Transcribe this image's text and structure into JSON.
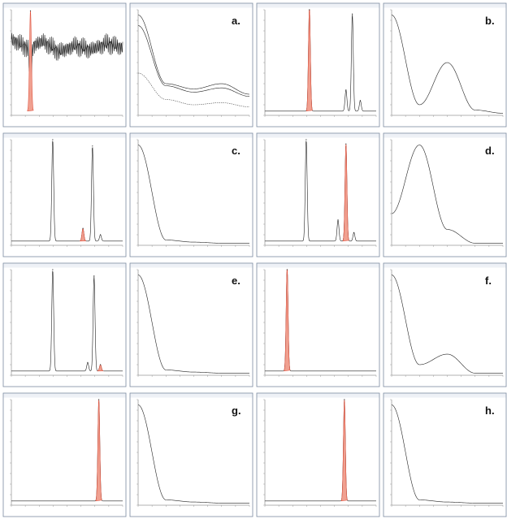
{
  "figure": {
    "rows": [
      {
        "label": "a."
      },
      {
        "label": "b."
      },
      {
        "label": "c."
      },
      {
        "label": "d."
      },
      {
        "label": "e."
      },
      {
        "label": "f."
      },
      {
        "label": "g."
      },
      {
        "label": "h."
      }
    ]
  },
  "colors": {
    "frame": "#7a8aa0",
    "trace": "#222222",
    "highlight": "#e0533f",
    "highlight_fill": "#f0a090",
    "titlebar": "#eef1f6"
  },
  "chart_data": [
    {
      "type": "line",
      "row": "a",
      "panel": "chromatogram",
      "x": [
        0,
        1,
        2,
        3,
        4,
        5,
        6,
        7
      ],
      "series": [
        {
          "values": [
            0.72,
            0.64,
            0.7,
            0.6,
            0.66,
            0.62,
            0.68,
            0.64
          ]
        }
      ],
      "peaks": [
        {
          "x": 1.2,
          "height": 0.95,
          "highlight": true
        }
      ]
    },
    {
      "type": "line",
      "row": "a",
      "panel": "spectrum",
      "x": [
        200,
        250,
        300,
        350,
        400
      ],
      "series": [
        {
          "values": [
            0.95,
            0.3,
            0.25,
            0.3,
            0.2
          ]
        },
        {
          "values": [
            0.85,
            0.28,
            0.22,
            0.26,
            0.18
          ]
        },
        {
          "values": [
            0.4,
            0.15,
            0.1,
            0.12,
            0.08
          ]
        }
      ]
    },
    {
      "type": "line",
      "row": "b",
      "panel": "chromatogram",
      "x": [
        0,
        1,
        2,
        3,
        4,
        5,
        6,
        7
      ],
      "peaks": [
        {
          "x": 2.8,
          "height": 0.98,
          "highlight": true
        },
        {
          "x": 5.1,
          "height": 0.2
        },
        {
          "x": 5.5,
          "height": 0.92
        },
        {
          "x": 6.0,
          "height": 0.1
        }
      ]
    },
    {
      "type": "line",
      "row": "b",
      "panel": "spectrum",
      "x": [
        200,
        250,
        300,
        350,
        400
      ],
      "series": [
        {
          "values": [
            0.95,
            0.1,
            0.5,
            0.05,
            0.02
          ]
        }
      ]
    },
    {
      "type": "line",
      "row": "c",
      "panel": "chromatogram",
      "x": [
        0,
        1,
        2,
        3,
        4,
        5,
        6,
        7
      ],
      "peaks": [
        {
          "x": 2.6,
          "height": 0.96
        },
        {
          "x": 4.5,
          "height": 0.12,
          "highlight": true
        },
        {
          "x": 5.1,
          "height": 0.9
        },
        {
          "x": 5.6,
          "height": 0.06
        }
      ]
    },
    {
      "type": "line",
      "row": "c",
      "panel": "spectrum",
      "x": [
        200,
        250,
        300,
        350,
        400
      ],
      "series": [
        {
          "values": [
            0.95,
            0.05,
            0.03,
            0.02,
            0.02
          ]
        }
      ]
    },
    {
      "type": "line",
      "row": "d",
      "panel": "chromatogram",
      "x": [
        0,
        1,
        2,
        3,
        4,
        5,
        6,
        7
      ],
      "peaks": [
        {
          "x": 2.6,
          "height": 0.96
        },
        {
          "x": 4.6,
          "height": 0.2
        },
        {
          "x": 5.1,
          "height": 0.92,
          "highlight": true
        },
        {
          "x": 5.6,
          "height": 0.08
        }
      ]
    },
    {
      "type": "line",
      "row": "d",
      "panel": "spectrum",
      "x": [
        200,
        250,
        300,
        350,
        400
      ],
      "series": [
        {
          "values": [
            0.3,
            0.95,
            0.15,
            0.02,
            0.02
          ]
        }
      ]
    },
    {
      "type": "line",
      "row": "e",
      "panel": "chromatogram",
      "x": [
        0,
        1,
        2,
        3,
        4,
        5,
        6,
        7
      ],
      "peaks": [
        {
          "x": 2.6,
          "height": 0.96
        },
        {
          "x": 4.8,
          "height": 0.08
        },
        {
          "x": 5.2,
          "height": 0.9
        },
        {
          "x": 5.6,
          "height": 0.06,
          "highlight": true
        }
      ]
    },
    {
      "type": "line",
      "row": "e",
      "panel": "spectrum",
      "x": [
        200,
        250,
        300,
        350,
        400
      ],
      "series": [
        {
          "values": [
            0.95,
            0.05,
            0.03,
            0.02,
            0.02
          ]
        }
      ]
    },
    {
      "type": "line",
      "row": "f",
      "panel": "chromatogram",
      "x": [
        0,
        1,
        2,
        3,
        4,
        5,
        6,
        7
      ],
      "peaks": [
        {
          "x": 1.4,
          "height": 0.98,
          "highlight": true
        }
      ]
    },
    {
      "type": "line",
      "row": "f",
      "panel": "spectrum",
      "x": [
        200,
        250,
        300,
        350,
        400
      ],
      "series": [
        {
          "values": [
            0.95,
            0.1,
            0.2,
            0.02,
            0.02
          ]
        }
      ]
    },
    {
      "type": "line",
      "row": "g",
      "panel": "chromatogram",
      "x": [
        0,
        1,
        2,
        3,
        4,
        5,
        6,
        7
      ],
      "peaks": [
        {
          "x": 5.5,
          "height": 0.96,
          "highlight": true
        }
      ]
    },
    {
      "type": "line",
      "row": "g",
      "panel": "spectrum",
      "x": [
        200,
        250,
        300,
        350,
        400
      ],
      "series": [
        {
          "values": [
            0.95,
            0.05,
            0.03,
            0.02,
            0.02
          ]
        }
      ]
    },
    {
      "type": "line",
      "row": "h",
      "panel": "chromatogram",
      "x": [
        0,
        1,
        2,
        3,
        4,
        5,
        6,
        7
      ],
      "peaks": [
        {
          "x": 5.0,
          "height": 0.96,
          "highlight": true
        }
      ]
    },
    {
      "type": "line",
      "row": "h",
      "panel": "spectrum",
      "x": [
        200,
        250,
        300,
        350,
        400
      ],
      "series": [
        {
          "values": [
            0.95,
            0.05,
            0.03,
            0.02,
            0.02
          ]
        }
      ]
    }
  ]
}
